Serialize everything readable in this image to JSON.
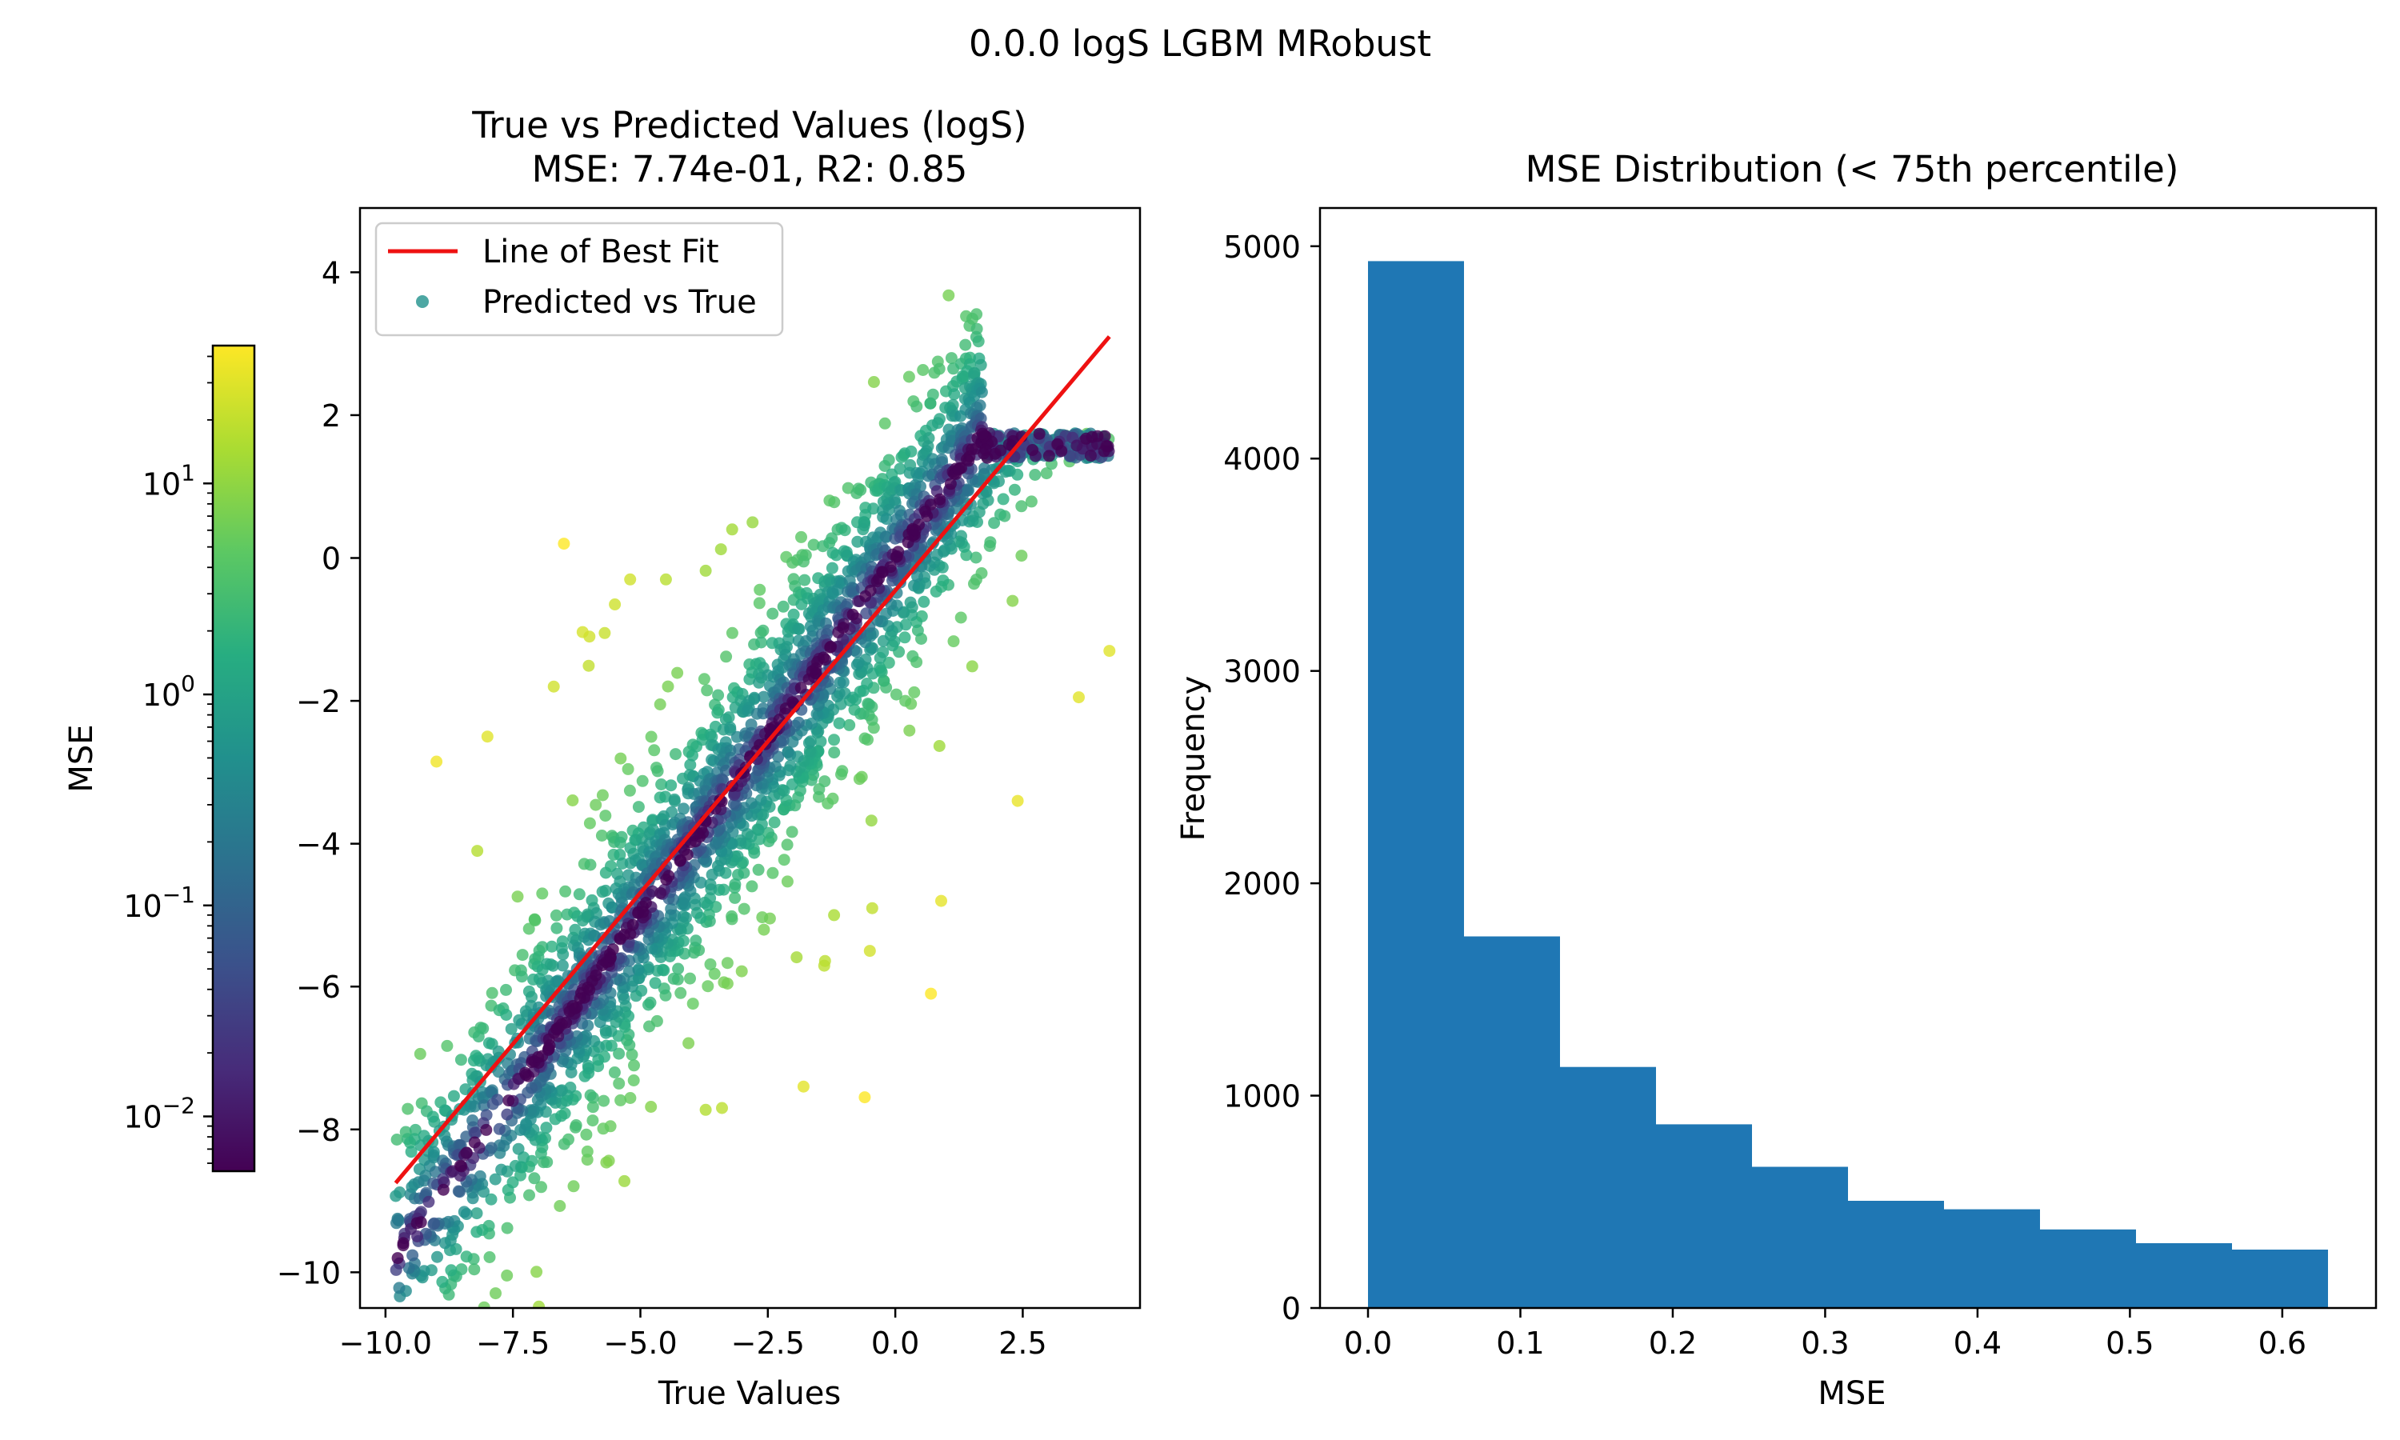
{
  "figure": {
    "suptitle": "0.0.0 logS LGBM MRobust"
  },
  "chart_data": [
    {
      "type": "scatter",
      "title_line1": "True vs Predicted Values (logS)",
      "title_line2": "MSE: 7.74e-01, R2: 0.85",
      "xlabel": "True Values",
      "ylabel": "",
      "xlim": [
        -10.5,
        4.8
      ],
      "ylim": [
        -10.5,
        4.9
      ],
      "xticks": [
        -10.0,
        -7.5,
        -5.0,
        -2.5,
        0.0,
        2.5
      ],
      "xtick_labels": [
        "−10.0",
        "−7.5",
        "−5.0",
        "−2.5",
        "0.0",
        "2.5"
      ],
      "yticks": [
        -10,
        -8,
        -6,
        -4,
        -2,
        0,
        2,
        4
      ],
      "ytick_labels": [
        "−10",
        "−8",
        "−6",
        "−4",
        "−2",
        "0",
        "2",
        "4"
      ],
      "legend": {
        "placement": "upper-left",
        "entries": [
          "Line of Best Fit",
          "Predicted vs True"
        ]
      },
      "best_fit_line": {
        "name": "Line of Best Fit",
        "color": "#ee1111",
        "x": [
          -9.8,
          4.2
        ],
        "y": [
          -8.75,
          3.1
        ]
      },
      "scatter": {
        "name": "Predicted vs True",
        "colormap": "viridis",
        "color_scale": "log",
        "color_range": [
          0.0055,
          45
        ],
        "x_range": [
          -9.8,
          4.2
        ],
        "noise_sd": 0.88,
        "point_count": 2600,
        "outliers": [
          {
            "x": -9.0,
            "y": -2.85
          },
          {
            "x": -8.0,
            "y": -2.5
          },
          {
            "x": -8.2,
            "y": -4.1
          },
          {
            "x": -6.7,
            "y": -1.8
          },
          {
            "x": -6.0,
            "y": -1.1
          },
          {
            "x": -5.7,
            "y": -1.05
          },
          {
            "x": -5.2,
            "y": -0.3
          },
          {
            "x": -5.5,
            "y": -0.65
          },
          {
            "x": -3.2,
            "y": 0.4
          },
          {
            "x": -2.8,
            "y": 0.5
          },
          {
            "x": -4.5,
            "y": -0.3
          },
          {
            "x": -0.5,
            "y": -5.5
          },
          {
            "x": 0.7,
            "y": -6.1
          },
          {
            "x": -1.8,
            "y": -7.4
          },
          {
            "x": -0.6,
            "y": -7.55
          },
          {
            "x": -3.4,
            "y": -7.7
          },
          {
            "x": 2.4,
            "y": -3.4
          },
          {
            "x": 3.6,
            "y": -1.95
          },
          {
            "x": 4.2,
            "y": -1.3
          },
          {
            "x": -1.2,
            "y": -5.0
          },
          {
            "x": 2.3,
            "y": -0.6
          },
          {
            "x": 0.9,
            "y": -4.8
          },
          {
            "x": -6.5,
            "y": 0.2
          }
        ]
      },
      "colorbar": {
        "label": "MSE",
        "scale": "log",
        "range": [
          0.0055,
          45
        ],
        "ticks": [
          0.01,
          0.1,
          1,
          10
        ],
        "tick_bases": [
          "10",
          "10",
          "10",
          "10"
        ],
        "tick_exponents": [
          "−2",
          "−1",
          "0",
          "1"
        ]
      }
    },
    {
      "type": "bar",
      "title": "MSE Distribution (< 75th percentile)",
      "xlabel": "MSE",
      "ylabel": "Frequency",
      "xlim": [
        -0.0315,
        0.6615
      ],
      "ylim": [
        0,
        5180
      ],
      "xticks": [
        0.0,
        0.1,
        0.2,
        0.3,
        0.4,
        0.5,
        0.6
      ],
      "xtick_labels": [
        "0.0",
        "0.1",
        "0.2",
        "0.3",
        "0.4",
        "0.5",
        "0.6"
      ],
      "yticks": [
        0,
        1000,
        2000,
        3000,
        4000,
        5000
      ],
      "ytick_labels": [
        "0",
        "1000",
        "2000",
        "3000",
        "4000",
        "5000"
      ],
      "bar_color": "#1f77b4",
      "bin_edges": [
        0.0,
        0.063,
        0.126,
        0.189,
        0.252,
        0.315,
        0.378,
        0.441,
        0.504,
        0.567,
        0.63
      ],
      "values": [
        4930,
        1750,
        1135,
        865,
        665,
        505,
        465,
        370,
        305,
        275
      ]
    }
  ]
}
